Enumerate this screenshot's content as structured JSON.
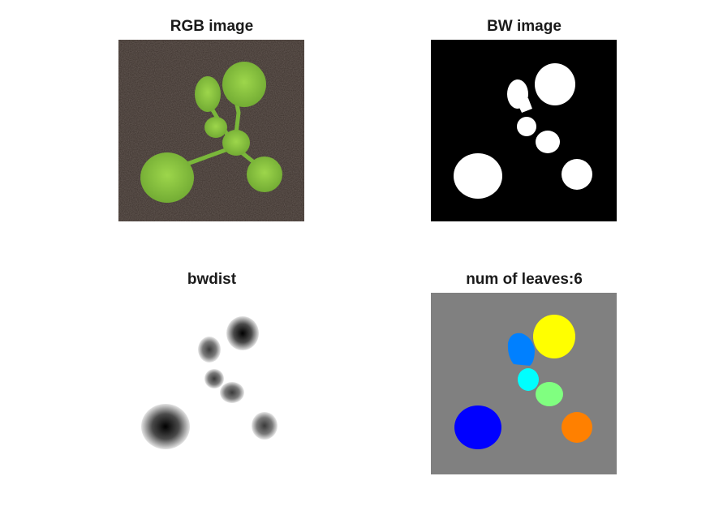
{
  "figure": {
    "panels": [
      {
        "id": "rgb",
        "title": "RGB image",
        "kind": "photo"
      },
      {
        "id": "bw",
        "title": "BW image",
        "kind": "binary-mask"
      },
      {
        "id": "bwdist",
        "title": "bwdist",
        "kind": "distance-transform"
      },
      {
        "id": "labels",
        "title": "num of leaves:6",
        "kind": "label-map"
      }
    ],
    "colors": {
      "soil": "#3a302b",
      "leaf": "#86c53c",
      "mask_bg": "#000000",
      "mask_fg": "#ffffff",
      "label_bg": "#808080",
      "leaf_labels": [
        "#0000ff",
        "#0080ff",
        "#00ffff",
        "#80ff80",
        "#ffff00",
        "#ff8000"
      ]
    }
  }
}
